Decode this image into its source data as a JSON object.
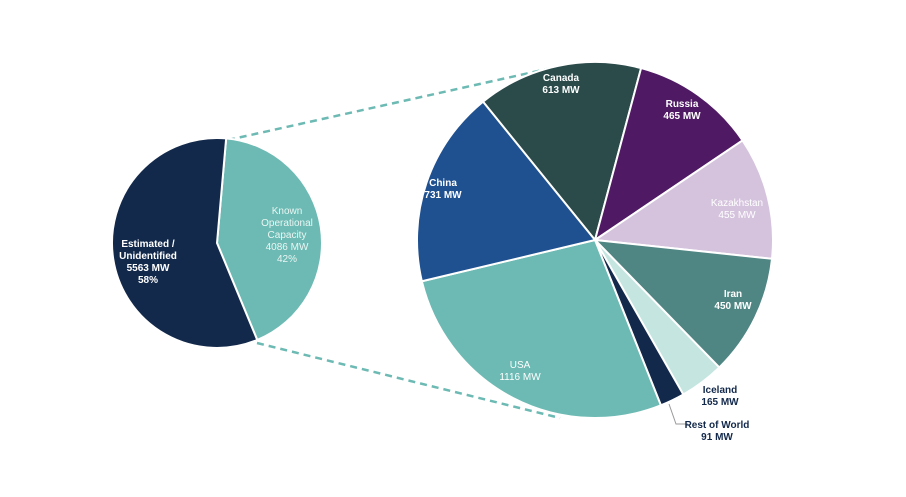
{
  "chart_data": {
    "type": "pie",
    "subtype": "pie-of-pie",
    "unit": "MW",
    "main_pie": {
      "slices": [
        {
          "name": "Known Operational Capacity",
          "label_lines": [
            "Known",
            "Operational",
            "Capacity"
          ],
          "value": 4086,
          "value_label": "4086  MW",
          "percent_label": "42%",
          "color": "#6cbab3"
        },
        {
          "name": "Estimated / Unidentified",
          "label_lines": [
            "Estimated  /",
            "Unidentified"
          ],
          "value": 5563,
          "value_label": "5563  MW",
          "percent_label": "58%",
          "color": "#13294b"
        }
      ]
    },
    "breakdown_pie": {
      "slices": [
        {
          "name": "Canada",
          "value": 613,
          "value_label": "613 MW",
          "color": "#2b4a4a"
        },
        {
          "name": "Russia",
          "value": 465,
          "value_label": "465 MW",
          "color": "#4f1a63"
        },
        {
          "name": "Kazakhstan",
          "value": 455,
          "value_label": "455 MW",
          "color": "#d5c3dd"
        },
        {
          "name": "Iran",
          "value": 450,
          "value_label": "450 MW",
          "color": "#4f8582"
        },
        {
          "name": "Iceland",
          "value": 165,
          "value_label": "165 MW",
          "color": "#c5e5e1"
        },
        {
          "name": "Rest of World",
          "value": 91,
          "value_label": "91 MW",
          "color": "#13294b"
        },
        {
          "name": "USA",
          "value": 1116,
          "value_label": "1116  MW",
          "color": "#6cbab3"
        },
        {
          "name": "China",
          "value": 731,
          "value_label": "731 MW",
          "color": "#1f5090"
        }
      ]
    },
    "connector_color": "#6cbab3"
  }
}
